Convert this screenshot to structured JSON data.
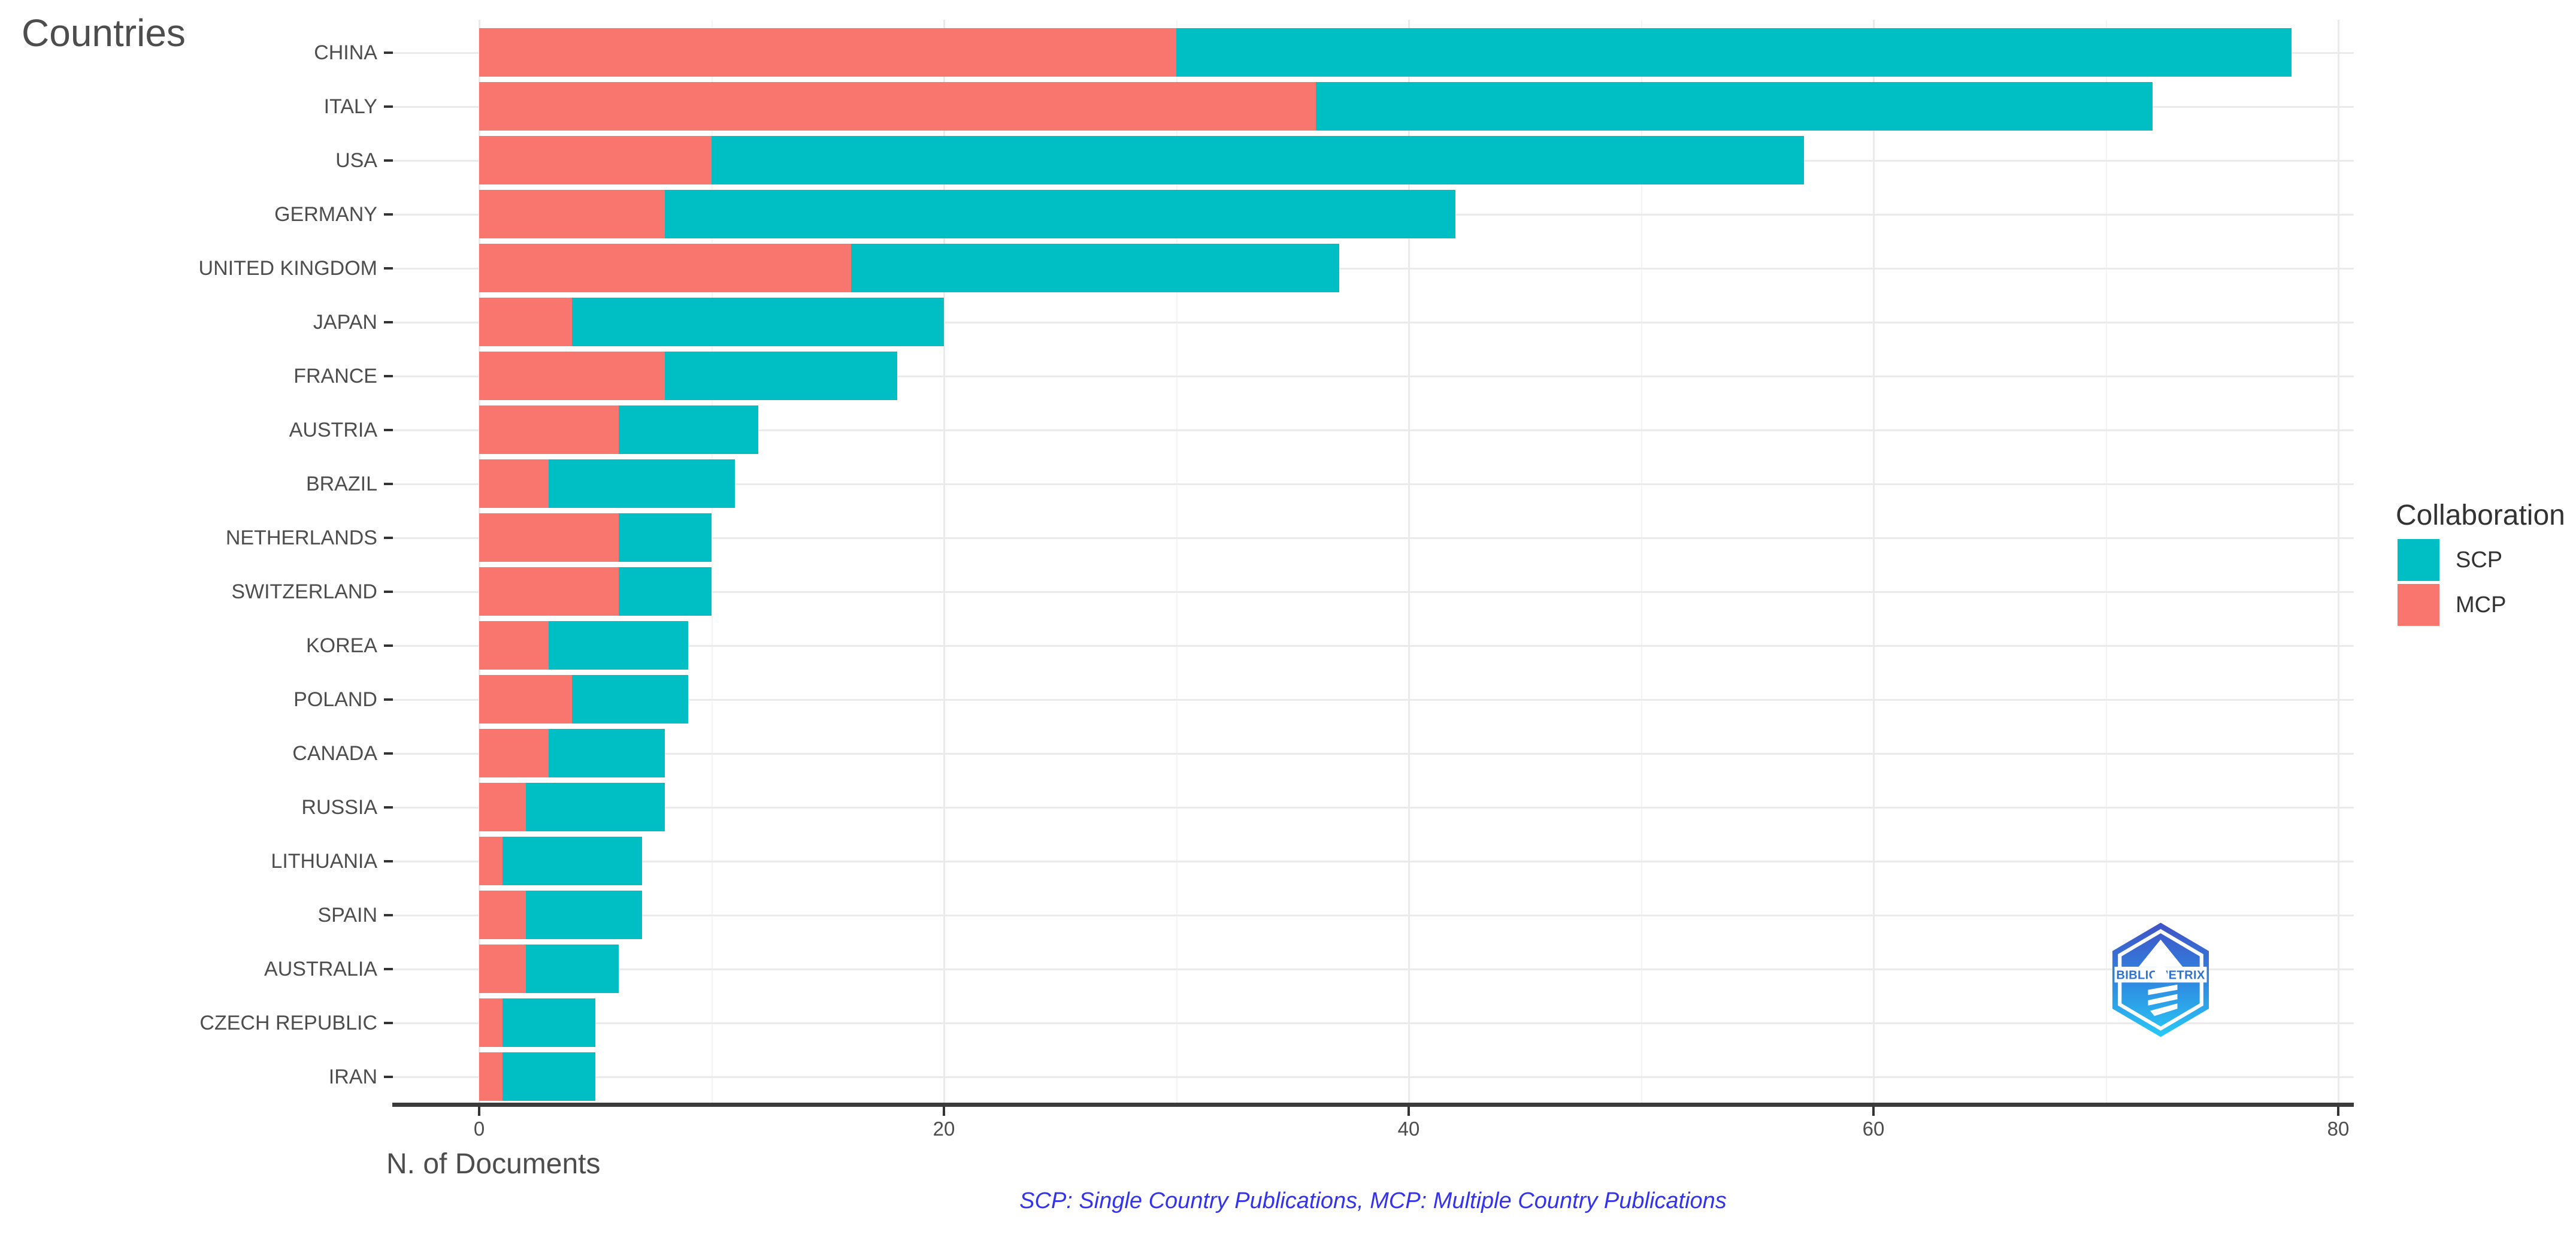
{
  "title": "Countries",
  "x_axis": {
    "label": "N. of Documents",
    "tick_labels": [
      "0",
      "20",
      "40",
      "60",
      "80"
    ]
  },
  "legend": {
    "title": "Collaboration",
    "items": [
      {
        "label": "SCP",
        "color": "#00BFC4"
      },
      {
        "label": "MCP",
        "color": "#F8766D"
      }
    ]
  },
  "caption": "SCP: Single Country Publications, MCP: Multiple Country Publications",
  "logo": {
    "text": "BIBLIOMETRIX"
  },
  "colors": {
    "scp": "#00BFC4",
    "mcp": "#F8766D",
    "axis_line": "#3B3B3B",
    "axis_text": "#4D4D4D",
    "legend_text": "#333333",
    "grid_major": "#EBEBEB",
    "grid_minor": "#F4F4F4",
    "caption_text": "#3333EE"
  },
  "chart_data": {
    "type": "bar",
    "orientation": "horizontal",
    "stacked": true,
    "title": "Countries",
    "xlabel": "N. of Documents",
    "ylabel": "",
    "xlim": [
      -4,
      82
    ],
    "x_ticks": [
      0,
      20,
      40,
      60,
      80
    ],
    "grid": true,
    "legend_title": "Collaboration",
    "legend_position": "right",
    "categories": [
      "CHINA",
      "ITALY",
      "USA",
      "GERMANY",
      "UNITED KINGDOM",
      "JAPAN",
      "FRANCE",
      "AUSTRIA",
      "BRAZIL",
      "NETHERLANDS",
      "SWITZERLAND",
      "KOREA",
      "POLAND",
      "CANADA",
      "RUSSIA",
      "LITHUANIA",
      "SPAIN",
      "AUSTRALIA",
      "CZECH REPUBLIC",
      "IRAN"
    ],
    "series": [
      {
        "name": "MCP",
        "color": "#F8766D",
        "values": [
          30,
          36,
          10,
          8,
          16,
          4,
          8,
          6,
          3,
          6,
          6,
          3,
          4,
          3,
          2,
          1,
          2,
          2,
          1,
          1
        ]
      },
      {
        "name": "SCP",
        "color": "#00BFC4",
        "values": [
          48,
          36,
          47,
          34,
          21,
          16,
          10,
          6,
          8,
          4,
          4,
          6,
          5,
          5,
          6,
          6,
          5,
          4,
          4,
          4
        ]
      }
    ],
    "totals": [
      78,
      72,
      57,
      42,
      37,
      20,
      18,
      12,
      11,
      10,
      10,
      9,
      9,
      8,
      8,
      7,
      7,
      6,
      5,
      5
    ]
  }
}
